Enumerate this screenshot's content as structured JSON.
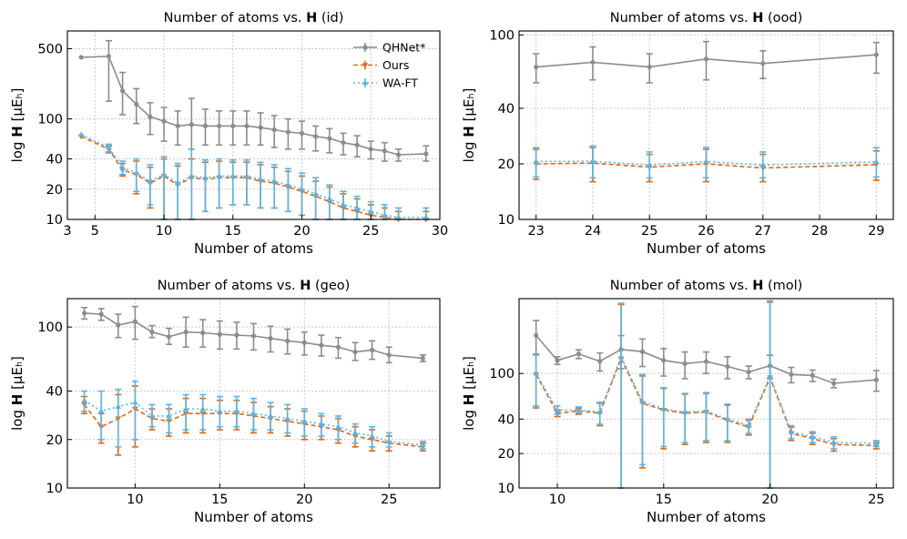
{
  "series_styles": [
    {
      "key": "qhnet",
      "color": "#8c8c8c",
      "dash": "",
      "marker": "circle"
    },
    {
      "key": "ours",
      "color": "#d96a1a",
      "dash": "5,3",
      "marker": "tri-down"
    },
    {
      "key": "waft",
      "color": "#5ab4e6",
      "dash": "2,3",
      "marker": "tri-up"
    }
  ],
  "chart_data": [
    {
      "type": "line",
      "title_prefix": "Number of atoms vs. ",
      "title_bold": "H",
      "title_suffix": " (id)",
      "xlabel": "Number of atoms",
      "ylabel_prefix": "log ",
      "ylabel_bold": "H",
      "ylabel_suffix": " [μEₕ]",
      "yscale": "log",
      "xlim": [
        3,
        30
      ],
      "ylim": [
        10,
        750
      ],
      "xticks": [
        3,
        5,
        10,
        15,
        20,
        25,
        30
      ],
      "xtick_labels": [
        "3",
        "5",
        "10",
        "15",
        "20",
        "25",
        "30"
      ],
      "yticks": [
        10,
        20,
        40,
        100,
        500
      ],
      "ytick_labels": [
        "10",
        "20",
        "40",
        "100",
        "500"
      ],
      "legend": {
        "position": "top-right",
        "entries": [
          "QHNet*",
          "Ours",
          "WA-FT"
        ]
      },
      "series": [
        {
          "name": "QHNet*",
          "x": [
            4,
            6,
            7,
            8,
            9,
            10,
            11,
            12,
            13,
            14,
            15,
            16,
            17,
            18,
            19,
            20,
            21,
            22,
            23,
            24,
            25,
            26,
            27,
            29
          ],
          "values": [
            410,
            420,
            190,
            140,
            105,
            95,
            85,
            88,
            85,
            85,
            85,
            85,
            82,
            78,
            74,
            72,
            67,
            64,
            58,
            55,
            50,
            48,
            44,
            45
          ],
          "err_low": [
            410,
            150,
            110,
            90,
            70,
            60,
            55,
            50,
            55,
            55,
            55,
            55,
            55,
            52,
            50,
            50,
            48,
            46,
            44,
            42,
            40,
            38,
            38,
            38
          ],
          "err_high": [
            410,
            600,
            290,
            200,
            145,
            130,
            120,
            160,
            125,
            120,
            120,
            120,
            115,
            108,
            100,
            95,
            85,
            80,
            72,
            68,
            60,
            58,
            50,
            54
          ]
        },
        {
          "name": "Ours",
          "x": [
            4,
            6,
            7,
            8,
            9,
            10,
            11,
            12,
            13,
            14,
            15,
            16,
            17,
            18,
            19,
            20,
            21,
            22,
            23,
            24,
            25,
            26,
            27,
            29
          ],
          "values": [
            67,
            50,
            31,
            28,
            23,
            27,
            22,
            26,
            25,
            26,
            26,
            26,
            24,
            23,
            21,
            19,
            17,
            15,
            13,
            12,
            11,
            10.5,
            10,
            10
          ],
          "err_low": [
            67,
            46,
            27,
            18,
            13,
            10,
            10,
            10,
            12,
            13,
            14,
            14,
            13,
            13,
            12,
            11,
            10,
            10,
            10,
            10,
            10,
            10,
            10,
            10
          ],
          "err_high": [
            67,
            54,
            36,
            38,
            33,
            40,
            34,
            40,
            37,
            38,
            37,
            37,
            35,
            33,
            30,
            27,
            24,
            21,
            18,
            16,
            14,
            13,
            12,
            12
          ]
        },
        {
          "name": "WA-FT",
          "x": [
            4,
            6,
            7,
            8,
            9,
            10,
            11,
            12,
            13,
            14,
            15,
            16,
            17,
            18,
            19,
            20,
            21,
            22,
            23,
            24,
            25,
            26,
            27,
            29
          ],
          "values": [
            70,
            52,
            33,
            29,
            24,
            28,
            23,
            27,
            26,
            27,
            27,
            27,
            25,
            24,
            22,
            20,
            18,
            16,
            14,
            13,
            12,
            11,
            10.5,
            10.5
          ],
          "err_low": [
            70,
            47,
            28,
            19,
            14,
            10,
            10,
            10,
            12,
            13,
            14,
            14,
            13,
            13,
            12,
            11,
            10,
            10,
            10,
            10,
            10,
            10,
            10,
            10
          ],
          "err_high": [
            70,
            56,
            38,
            40,
            35,
            42,
            36,
            50,
            39,
            40,
            39,
            39,
            37,
            35,
            32,
            29,
            26,
            22,
            19,
            17,
            15,
            14,
            13,
            13
          ]
        }
      ]
    },
    {
      "type": "line",
      "title_prefix": "Number of atoms vs. ",
      "title_bold": "H",
      "title_suffix": " (ood)",
      "xlabel": "Number of atoms",
      "ylabel_prefix": "log ",
      "ylabel_bold": "H",
      "ylabel_suffix": " [μEₕ]",
      "yscale": "log",
      "xlim": [
        22.7,
        29.3
      ],
      "ylim": [
        10,
        105
      ],
      "xticks": [
        23,
        24,
        25,
        26,
        27,
        28,
        29
      ],
      "xtick_labels": [
        "23",
        "24",
        "25",
        "26",
        "27",
        "28",
        "29"
      ],
      "yticks": [
        10,
        20,
        40,
        100
      ],
      "ytick_labels": [
        "10",
        "20",
        "40",
        "100"
      ],
      "legend": null,
      "series": [
        {
          "name": "QHNet*",
          "x": [
            23,
            24,
            25,
            26,
            27,
            29
          ],
          "values": [
            67,
            71,
            67,
            74,
            70,
            78
          ],
          "err_low": [
            55,
            57,
            55,
            57,
            58,
            62
          ],
          "err_high": [
            79,
            86,
            79,
            92,
            82,
            91
          ]
        },
        {
          "name": "Ours",
          "x": [
            23,
            24,
            25,
            26,
            27,
            29
          ],
          "values": [
            20.0,
            20.2,
            19.2,
            20.0,
            19.0,
            19.8
          ],
          "err_low": [
            16.5,
            16.0,
            16.0,
            16.0,
            16.0,
            16.3
          ],
          "err_high": [
            24.0,
            24.5,
            22.5,
            24.0,
            22.5,
            23.5
          ]
        },
        {
          "name": "WA-FT",
          "x": [
            23,
            24,
            25,
            26,
            27,
            29
          ],
          "values": [
            20.6,
            20.7,
            19.7,
            20.6,
            19.7,
            20.5
          ],
          "err_low": [
            17.0,
            16.8,
            16.8,
            16.8,
            16.8,
            17.0
          ],
          "err_high": [
            24.5,
            25.0,
            23.2,
            24.6,
            23.2,
            24.5
          ]
        }
      ]
    },
    {
      "type": "line",
      "title_prefix": "Number of atoms vs. ",
      "title_bold": "H",
      "title_suffix": " (geo)",
      "xlabel": "Number of atoms",
      "ylabel_prefix": "log ",
      "ylabel_bold": "H",
      "ylabel_suffix": " [μEₕ]",
      "yscale": "log",
      "xlim": [
        6.0,
        28.0
      ],
      "ylim": [
        10,
        150
      ],
      "xticks": [
        10,
        15,
        20,
        25
      ],
      "xtick_labels": [
        "10",
        "15",
        "20",
        "25"
      ],
      "yticks": [
        10,
        20,
        40,
        100
      ],
      "ytick_labels": [
        "10",
        "20",
        "40",
        "100"
      ],
      "legend": null,
      "series": [
        {
          "name": "QHNet*",
          "x": [
            7,
            8,
            9,
            10,
            11,
            12,
            13,
            14,
            15,
            16,
            17,
            18,
            19,
            20,
            21,
            22,
            23,
            24,
            25,
            27
          ],
          "values": [
            122,
            120,
            103,
            108,
            93,
            87,
            93,
            92,
            90,
            89,
            88,
            85,
            82,
            80,
            77,
            75,
            70,
            72,
            67,
            64
          ],
          "err_low": [
            112,
            110,
            86,
            84,
            86,
            78,
            75,
            75,
            73,
            73,
            72,
            70,
            68,
            67,
            66,
            64,
            62,
            63,
            60,
            61
          ],
          "err_high": [
            132,
            130,
            120,
            134,
            102,
            98,
            115,
            111,
            109,
            107,
            105,
            101,
            97,
            93,
            89,
            86,
            80,
            82,
            75,
            67
          ]
        },
        {
          "name": "Ours",
          "x": [
            7,
            8,
            9,
            10,
            11,
            12,
            13,
            14,
            15,
            16,
            17,
            18,
            19,
            20,
            21,
            22,
            23,
            24,
            25,
            27
          ],
          "values": [
            33,
            24,
            27,
            31,
            27,
            26,
            29,
            29,
            29,
            29,
            28,
            27,
            26,
            25,
            24,
            23,
            21,
            20,
            19,
            18
          ],
          "err_low": [
            29,
            19,
            16,
            18,
            23,
            21,
            22,
            22,
            23,
            23,
            22,
            22,
            21,
            20,
            20,
            19,
            18,
            17,
            17,
            17
          ],
          "err_high": [
            37,
            29,
            38,
            43,
            31,
            31,
            36,
            36,
            35,
            35,
            34,
            32,
            31,
            30,
            28,
            27,
            24,
            23,
            21,
            19
          ]
        },
        {
          "name": "WA-FT",
          "x": [
            7,
            8,
            9,
            10,
            11,
            12,
            13,
            14,
            15,
            16,
            17,
            18,
            19,
            20,
            21,
            22,
            23,
            24,
            25,
            27
          ],
          "values": [
            35,
            30,
            32,
            34,
            28,
            28,
            31,
            31,
            30,
            30,
            29,
            28,
            27,
            26,
            25,
            24,
            22,
            21,
            19.5,
            18.5
          ],
          "err_low": [
            30,
            20,
            18,
            20,
            24,
            22,
            23,
            23,
            24,
            24,
            23,
            23,
            22,
            21,
            21,
            20,
            19,
            18,
            18,
            17.5
          ],
          "err_high": [
            40,
            40,
            41,
            46,
            33,
            33,
            38,
            38,
            37,
            37,
            36,
            34,
            33,
            31,
            29,
            28,
            25,
            24,
            22,
            19.5
          ]
        }
      ]
    },
    {
      "type": "line",
      "title_prefix": "Number of atoms vs. ",
      "title_bold": "H",
      "title_suffix": " (mol)",
      "xlabel": "Number of atoms",
      "ylabel_prefix": "log ",
      "ylabel_bold": "H",
      "ylabel_suffix": " [μEₕ]",
      "yscale": "log",
      "xlim": [
        8.2,
        25.8
      ],
      "ylim": [
        10,
        450
      ],
      "xticks": [
        10,
        15,
        20,
        25
      ],
      "xtick_labels": [
        "10",
        "15",
        "20",
        "25"
      ],
      "yticks": [
        10,
        20,
        40,
        100
      ],
      "ytick_labels": [
        "10",
        "20",
        "40",
        "100"
      ],
      "legend": null,
      "series": [
        {
          "name": "QHNet*",
          "x": [
            9,
            10,
            11,
            12,
            13,
            14,
            15,
            16,
            17,
            18,
            19,
            20,
            21,
            22,
            23,
            25
          ],
          "values": [
            215,
            130,
            148,
            128,
            162,
            155,
            130,
            122,
            127,
            115,
            103,
            117,
            98,
            96,
            82,
            88
          ],
          "err_low": [
            145,
            120,
            135,
            105,
            110,
            115,
            95,
            90,
            100,
            90,
            90,
            90,
            83,
            85,
            75,
            70
          ],
          "err_high": [
            290,
            140,
            161,
            151,
            214,
            200,
            165,
            154,
            154,
            140,
            116,
            144,
            113,
            107,
            89,
            106
          ]
        },
        {
          "name": "Ours",
          "x": [
            9,
            10,
            11,
            12,
            13,
            14,
            15,
            16,
            17,
            18,
            19,
            20,
            21,
            22,
            23,
            25
          ],
          "values": [
            98,
            45,
            47,
            45,
            135,
            55,
            48,
            45,
            46,
            39,
            34,
            92,
            30,
            27,
            24,
            23.5
          ],
          "err_low": [
            50,
            42,
            44,
            35,
            10,
            15,
            22,
            24,
            25,
            25,
            29,
            10,
            26,
            24,
            21,
            22
          ],
          "err_high": [
            146,
            48,
            50,
            55,
            400,
            95,
            74,
            66,
            67,
            53,
            39,
            420,
            34,
            30,
            27,
            25
          ]
        },
        {
          "name": "WA-FT",
          "x": [
            9,
            10,
            11,
            12,
            13,
            14,
            15,
            16,
            17,
            18,
            19,
            20,
            21,
            22,
            23,
            25
          ],
          "values": [
            100,
            48,
            48,
            46,
            140,
            57,
            49,
            46,
            47,
            40,
            35,
            95,
            31,
            28,
            25,
            24.5
          ],
          "err_low": [
            52,
            44,
            45,
            36,
            10,
            16,
            23,
            25,
            26,
            26,
            30,
            10,
            27,
            25,
            22,
            23
          ],
          "err_high": [
            148,
            52,
            51,
            56,
            410,
            98,
            75,
            67,
            68,
            54,
            40,
            430,
            35,
            31,
            28,
            26
          ]
        }
      ]
    }
  ]
}
